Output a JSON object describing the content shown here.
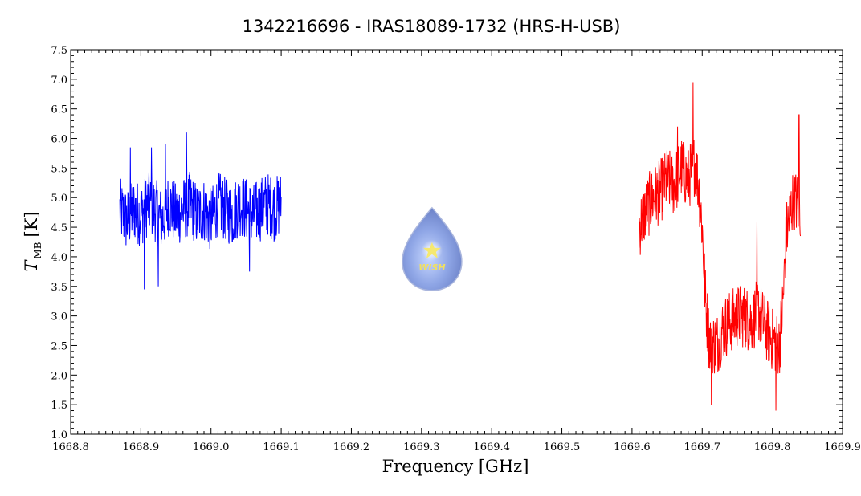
{
  "chart_data": {
    "type": "line",
    "title": "1342216696 - IRAS18089-1732 (HRS-H-USB)",
    "xlabel": "Frequency [GHz]",
    "ylabel": {
      "symbol": "T",
      "subscript": "MB",
      "unit": "[K]"
    },
    "xlim": [
      1668.8,
      1669.9
    ],
    "ylim": [
      1.0,
      7.5
    ],
    "x_ticks": [
      "1668.8",
      "1668.9",
      "1669.0",
      "1669.1",
      "1669.2",
      "1669.3",
      "1669.4",
      "1669.5",
      "1669.6",
      "1669.7",
      "1669.8",
      "1669.9"
    ],
    "y_ticks": [
      "1.0",
      "1.5",
      "2.0",
      "2.5",
      "3.0",
      "3.5",
      "4.0",
      "4.5",
      "5.0",
      "5.5",
      "6.0",
      "6.5",
      "7.0",
      "7.5"
    ],
    "grid": false,
    "series": [
      {
        "color": "#0000ff",
        "x": [
          1668.87,
          1668.88,
          1668.89,
          1668.9,
          1668.91,
          1668.92,
          1668.93,
          1668.94,
          1668.95,
          1668.96,
          1668.97,
          1668.98,
          1668.99,
          1669.0,
          1669.01,
          1669.02,
          1669.03,
          1669.04,
          1669.05,
          1669.06,
          1669.07,
          1669.08,
          1669.09,
          1669.1
        ],
        "y": [
          4.8,
          4.6,
          4.8,
          4.7,
          4.9,
          4.8,
          4.6,
          4.9,
          4.7,
          4.8,
          4.9,
          4.7,
          4.8,
          4.6,
          4.9,
          4.8,
          4.7,
          4.9,
          4.8,
          4.7,
          4.8,
          4.9,
          4.8,
          4.9
        ],
        "noise_amplitude": 0.55,
        "spikes": [
          [
            1668.885,
            5.85
          ],
          [
            1668.905,
            3.45
          ],
          [
            1668.915,
            5.85
          ],
          [
            1668.935,
            5.9
          ],
          [
            1668.965,
            6.1
          ],
          [
            1668.925,
            3.5
          ],
          [
            1669.055,
            3.75
          ]
        ]
      },
      {
        "color": "#ff0000",
        "x": [
          1669.61,
          1669.62,
          1669.63,
          1669.64,
          1669.65,
          1669.66,
          1669.67,
          1669.68,
          1669.69,
          1669.695,
          1669.7,
          1669.705,
          1669.71,
          1669.72,
          1669.73,
          1669.74,
          1669.75,
          1669.76,
          1669.77,
          1669.78,
          1669.79,
          1669.8,
          1669.81,
          1669.815,
          1669.82,
          1669.83,
          1669.84
        ],
        "y": [
          4.5,
          4.8,
          5.0,
          5.1,
          5.3,
          5.2,
          5.5,
          5.3,
          5.6,
          5.2,
          4.5,
          3.2,
          2.6,
          2.5,
          2.8,
          2.9,
          3.0,
          3.0,
          2.9,
          3.1,
          2.8,
          2.6,
          2.5,
          3.2,
          4.4,
          5.0,
          4.8
        ],
        "noise_amplitude": 0.55,
        "spikes": [
          [
            1669.687,
            6.95
          ],
          [
            1669.665,
            6.2
          ],
          [
            1669.838,
            6.4
          ],
          [
            1669.713,
            1.5
          ],
          [
            1669.805,
            1.4
          ],
          [
            1669.778,
            4.6
          ]
        ]
      }
    ],
    "logo": {
      "icon": "wish-water-drop-logo",
      "text": "WISH",
      "x": 1669.315,
      "y": 4.0
    }
  }
}
